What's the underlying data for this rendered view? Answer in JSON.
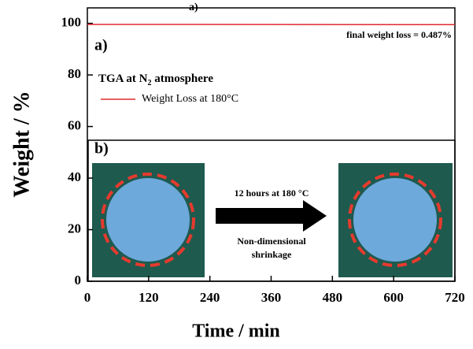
{
  "chart_data": {
    "type": "line",
    "x_label": "Time / min",
    "y_label": "Weight / %",
    "x": [
      0,
      720
    ],
    "series": [
      {
        "name": "Weight Loss at 180°C",
        "color": "#e0282e",
        "values": [
          99.6,
          99.5
        ]
      }
    ],
    "xlim": [
      0,
      720
    ],
    "xticks": [
      0,
      120,
      240,
      360,
      480,
      600,
      720
    ],
    "ylim": [
      0,
      106
    ],
    "yticks": [
      0,
      20,
      40,
      60,
      80,
      100
    ],
    "legend_title": [
      "TGA at N",
      "2",
      " atmosphere"
    ],
    "annotations": [
      "a)",
      "final weight loss = 0.487%",
      "b)",
      "12 hours at 180 °C",
      "Non-dimensional",
      "shrinkage"
    ]
  }
}
